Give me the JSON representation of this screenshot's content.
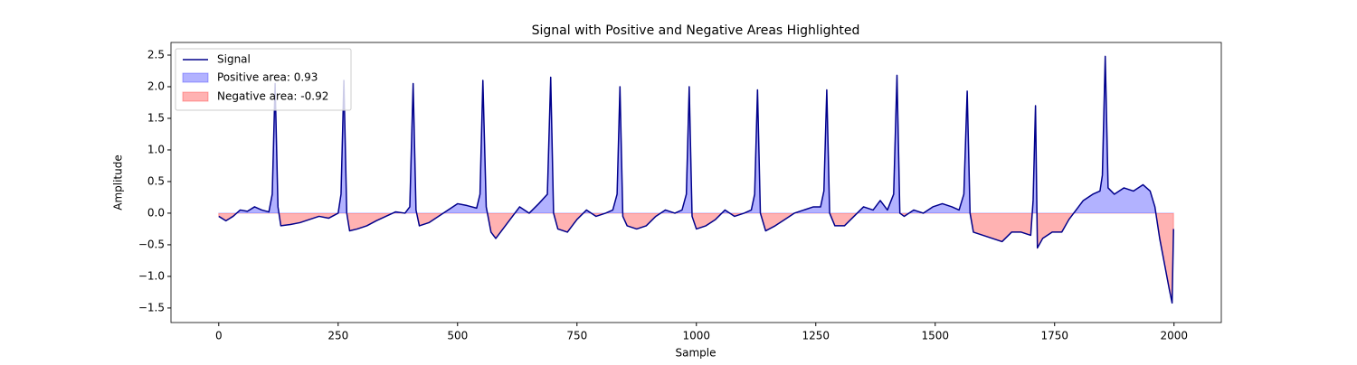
{
  "chart_data": {
    "type": "line",
    "title": "Signal with Positive and Negative Areas Highlighted",
    "xlabel": "Sample",
    "ylabel": "Amplitude",
    "x": [
      0,
      15,
      30,
      45,
      60,
      75,
      90,
      105,
      112,
      118,
      124,
      130,
      150,
      170,
      190,
      210,
      230,
      250,
      256,
      262,
      268,
      274,
      290,
      310,
      330,
      350,
      370,
      390,
      400,
      407,
      413,
      420,
      440,
      460,
      480,
      500,
      520,
      540,
      547,
      553,
      560,
      570,
      580,
      595,
      615,
      630,
      650,
      670,
      688,
      695,
      701,
      710,
      730,
      750,
      770,
      790,
      810,
      825,
      834,
      840,
      846,
      855,
      875,
      895,
      915,
      935,
      955,
      970,
      979,
      985,
      991,
      1000,
      1020,
      1040,
      1060,
      1080,
      1100,
      1115,
      1122,
      1128,
      1134,
      1145,
      1165,
      1185,
      1205,
      1225,
      1245,
      1260,
      1267,
      1273,
      1279,
      1290,
      1310,
      1330,
      1350,
      1370,
      1385,
      1400,
      1413,
      1420,
      1426,
      1435,
      1455,
      1475,
      1495,
      1515,
      1535,
      1550,
      1560,
      1567,
      1573,
      1580,
      1600,
      1620,
      1640,
      1660,
      1680,
      1700,
      1705,
      1710,
      1714,
      1725,
      1745,
      1765,
      1780,
      1795,
      1810,
      1830,
      1845,
      1850,
      1856,
      1862,
      1875,
      1895,
      1915,
      1935,
      1950,
      1960,
      1970,
      1980,
      1990,
      1996,
      1999
    ],
    "series": [
      {
        "name": "Signal",
        "color": "#00008b",
        "values": [
          -0.05,
          -0.12,
          -0.05,
          0.05,
          0.03,
          0.1,
          0.05,
          0.02,
          0.3,
          2.05,
          0.1,
          -0.2,
          -0.18,
          -0.15,
          -0.1,
          -0.05,
          -0.08,
          0.0,
          0.3,
          2.1,
          0.0,
          -0.28,
          -0.25,
          -0.2,
          -0.12,
          -0.05,
          0.02,
          0.0,
          0.1,
          2.05,
          0.05,
          -0.2,
          -0.15,
          -0.05,
          0.05,
          0.15,
          0.12,
          0.08,
          0.3,
          2.1,
          0.1,
          -0.3,
          -0.4,
          -0.25,
          -0.05,
          0.1,
          0.0,
          0.15,
          0.3,
          2.15,
          0.0,
          -0.25,
          -0.3,
          -0.1,
          0.05,
          -0.05,
          0.0,
          0.05,
          0.3,
          2.0,
          -0.05,
          -0.2,
          -0.25,
          -0.2,
          -0.05,
          0.05,
          0.0,
          0.05,
          0.3,
          2.0,
          -0.05,
          -0.25,
          -0.2,
          -0.1,
          0.05,
          -0.05,
          0.0,
          0.05,
          0.3,
          1.95,
          0.0,
          -0.28,
          -0.2,
          -0.1,
          0.0,
          0.05,
          0.1,
          0.1,
          0.35,
          1.95,
          0.0,
          -0.2,
          -0.2,
          -0.05,
          0.1,
          0.05,
          0.2,
          0.05,
          0.3,
          2.18,
          0.0,
          -0.05,
          0.05,
          0.0,
          0.1,
          0.15,
          0.1,
          0.05,
          0.3,
          1.93,
          0.0,
          -0.3,
          -0.35,
          -0.4,
          -0.45,
          -0.3,
          -0.3,
          -0.35,
          0.2,
          1.7,
          -0.55,
          -0.4,
          -0.3,
          -0.3,
          -0.1,
          0.05,
          0.2,
          0.3,
          0.35,
          0.6,
          2.48,
          0.4,
          0.3,
          0.4,
          0.35,
          0.45,
          0.35,
          0.1,
          -0.4,
          -0.8,
          -1.2,
          -1.42,
          -0.25
        ]
      }
    ],
    "fills": [
      {
        "name": "Positive area: 0.93",
        "color": "#0000ff",
        "where": "positive"
      },
      {
        "name": "Negative area: -0.92",
        "color": "#ff0000",
        "where": "negative"
      }
    ],
    "xlim": [
      -100,
      2099
    ],
    "ylim": [
      -1.73,
      2.7
    ],
    "xticks": [
      0,
      250,
      500,
      750,
      1000,
      1250,
      1500,
      1750,
      2000
    ],
    "yticks": [
      {
        "value": -1.5,
        "label": "−1.5"
      },
      {
        "value": -1.0,
        "label": "−1.0"
      },
      {
        "value": -0.5,
        "label": "−0.5"
      },
      {
        "value": 0,
        "label": "0.0"
      },
      0.5,
      {
        "value": 1.0,
        "label": "1.0"
      },
      1.5,
      {
        "value": 2.0,
        "label": "2.0"
      },
      2.5
    ],
    "legend": "upper left"
  }
}
